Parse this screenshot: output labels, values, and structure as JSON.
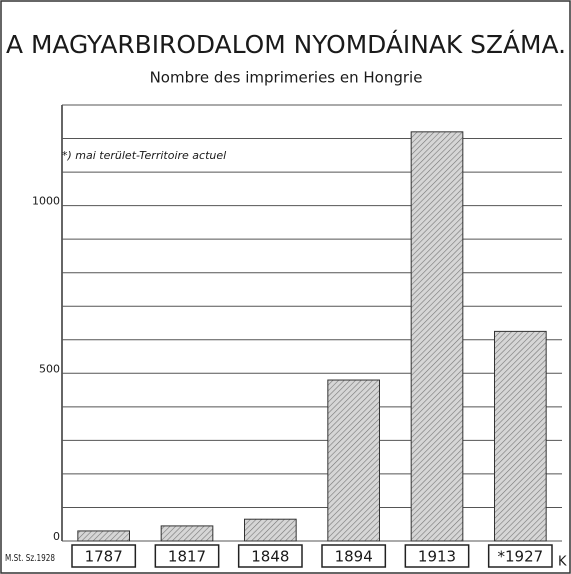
{
  "chart_data": {
    "type": "bar",
    "title": "A MAGYARBIRODALOM NYOMDÁINAK SZÁMA.",
    "subtitle": "Nombre des imprimeries en Hongrie",
    "annotation": "*) mai terület-Territoire actuel",
    "source": "M.St. Sz.1928",
    "corner_mark": "K",
    "categories": [
      "1787",
      "1817",
      "1848",
      "1894",
      "1913",
      "*1927"
    ],
    "values": [
      30,
      45,
      65,
      480,
      1220,
      625
    ],
    "color": "#b8b8b8",
    "ylim": [
      0,
      1300
    ],
    "yticks": [
      0,
      500,
      1000
    ],
    "grid": true,
    "grid_lines": [
      100,
      200,
      300,
      400,
      600,
      700,
      800,
      900,
      1100,
      1200,
      1300
    ]
  }
}
